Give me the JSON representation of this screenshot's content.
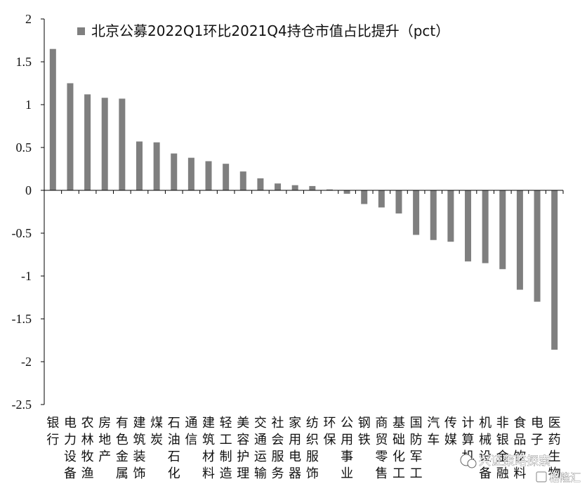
{
  "chart_data": {
    "type": "bar",
    "title": "",
    "xlabel": "",
    "ylabel": "",
    "ylim": [
      -2.5,
      2
    ],
    "yticks": [
      "2",
      "1.5",
      "1",
      "0.5",
      "0",
      "-0.5",
      "-1",
      "-1.5",
      "-2",
      "-2.5"
    ],
    "legend": {
      "position": "top",
      "label": "北京公募2022Q1环比2021Q4持仓市值占比提升（pct）"
    },
    "bar_color": "#7f7f7f",
    "categories": [
      "银行",
      "电力设备",
      "农林牧渔",
      "房地产",
      "有色金属",
      "建筑装饰",
      "煤炭",
      "石油石化",
      "通信",
      "建筑材料",
      "轻工制造",
      "美容护理",
      "交通运输",
      "社会服务",
      "家用电器",
      "纺织服饰",
      "环保",
      "公用事业",
      "钢铁",
      "商贸零售",
      "基础化工",
      "国防军工",
      "汽车",
      "传媒",
      "计算机",
      "机械设备",
      "非银金融",
      "食品饮料",
      "电子",
      "医药生物"
    ],
    "values": [
      1.65,
      1.25,
      1.12,
      1.08,
      1.07,
      0.57,
      0.56,
      0.43,
      0.38,
      0.34,
      0.31,
      0.22,
      0.14,
      0.08,
      0.06,
      0.05,
      0.01,
      -0.04,
      -0.16,
      -0.2,
      -0.27,
      -0.52,
      -0.58,
      -0.6,
      -0.83,
      -0.85,
      -0.92,
      -1.16,
      -1.3,
      -1.86
    ]
  },
  "watermark": {
    "text": "兴证策略探索"
  },
  "corner_logo": {
    "text": "格隆汇"
  }
}
